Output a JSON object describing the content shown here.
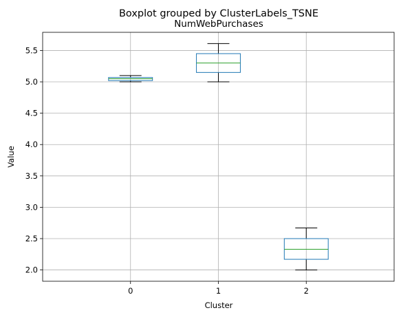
{
  "chart_data": {
    "type": "boxplot",
    "suptitle": "Boxplot grouped by ClusterLabels_TSNE",
    "title": "NumWebPurchases",
    "xlabel": "Cluster",
    "ylabel": "Value",
    "categories": [
      "0",
      "1",
      "2"
    ],
    "boxes": [
      {
        "label": "0",
        "whisker_low": 5.0,
        "q1": 5.02,
        "median": 5.05,
        "q3": 5.07,
        "whisker_high": 5.1
      },
      {
        "label": "1",
        "whisker_low": 5.0,
        "q1": 5.15,
        "median": 5.3,
        "q3": 5.45,
        "whisker_high": 5.61
      },
      {
        "label": "2",
        "whisker_low": 2.0,
        "q1": 2.17,
        "median": 2.33,
        "q3": 2.5,
        "whisker_high": 2.67
      }
    ],
    "ylim": [
      1.82,
      5.79
    ],
    "yticks": [
      "2.0",
      "2.5",
      "3.0",
      "3.5",
      "4.0",
      "4.5",
      "5.0",
      "5.5"
    ],
    "grid": true,
    "colors": {
      "box": "#1f77b4",
      "median": "#2ca02c",
      "whisker": "#000000",
      "grid": "#b0b0b0"
    }
  }
}
